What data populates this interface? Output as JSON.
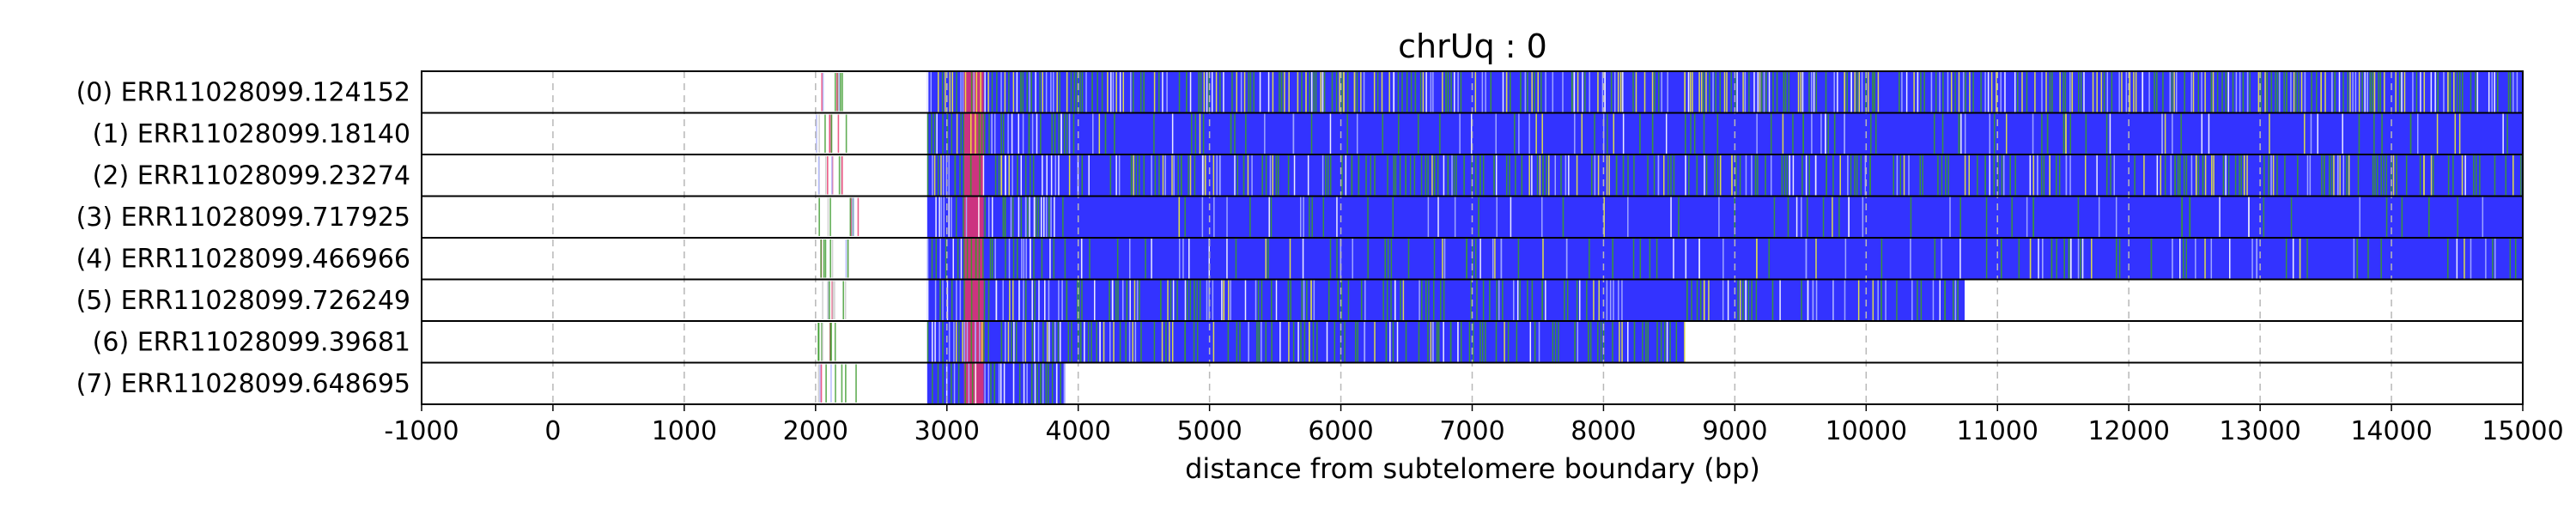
{
  "chart_data": {
    "type": "heatmap",
    "title": "chrUq : 0",
    "xlabel": "distance from subtelomere boundary (bp)",
    "ylabel": "",
    "xlim": [
      -1000,
      15000
    ],
    "xticks": [
      -1000,
      0,
      1000,
      2000,
      3000,
      4000,
      5000,
      6000,
      7000,
      8000,
      9000,
      10000,
      11000,
      12000,
      13000,
      14000,
      15000
    ],
    "grid": "vertical dashed",
    "colors": {
      "primary": "#3333ff",
      "green": "#3a9a2a",
      "yellow": "#ecec3a",
      "red": "#e8346a",
      "light": "#aab0ff",
      "white": "#ffffff"
    },
    "rows": [
      {
        "label": "(0) ERR11028099.124152",
        "sparse_start": 2000,
        "sparse_end": 2250,
        "dense_start": 2850,
        "end": 15000,
        "green_level": 0.35,
        "yellow_level": 0.2,
        "light_level": 0.22
      },
      {
        "label": "(1) ERR11028099.18140",
        "sparse_start": 2000,
        "sparse_end": 2300,
        "dense_start": 2850,
        "end": 15000,
        "green_level": 0.12,
        "yellow_level": 0.03,
        "light_level": 0.1
      },
      {
        "label": "(2) ERR11028099.23274",
        "sparse_start": 2000,
        "sparse_end": 2250,
        "dense_start": 2850,
        "end": 15000,
        "green_level": 0.3,
        "yellow_level": 0.12,
        "light_level": 0.15
      },
      {
        "label": "(3) ERR11028099.717925",
        "sparse_start": 2000,
        "sparse_end": 2400,
        "dense_start": 2850,
        "end": 15000,
        "green_level": 0.05,
        "yellow_level": 0.01,
        "light_level": 0.06
      },
      {
        "label": "(4) ERR11028099.466966",
        "sparse_start": 2000,
        "sparse_end": 2250,
        "dense_start": 2850,
        "end": 15000,
        "green_level": 0.1,
        "yellow_level": 0.02,
        "light_level": 0.1
      },
      {
        "label": "(5) ERR11028099.726249",
        "sparse_start": 2000,
        "sparse_end": 2250,
        "dense_start": 2850,
        "end": 10750,
        "green_level": 0.2,
        "yellow_level": 0.03,
        "light_level": 0.15
      },
      {
        "label": "(6) ERR11028099.39681",
        "sparse_start": 2000,
        "sparse_end": 2250,
        "dense_start": 2850,
        "end": 8620,
        "green_level": 0.4,
        "yellow_level": 0.08,
        "light_level": 0.12
      },
      {
        "label": "(7) ERR11028099.648695",
        "sparse_start": 2000,
        "sparse_end": 2400,
        "dense_start": 2850,
        "end": 3900,
        "green_level": 0.3,
        "yellow_level": 0.05,
        "light_level": 0.3
      }
    ]
  }
}
